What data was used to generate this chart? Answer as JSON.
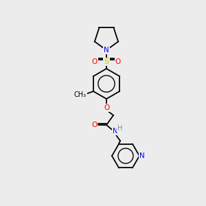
{
  "bg_color": "#ececec",
  "bond_color": "#000000",
  "atom_colors": {
    "N": "#0000ff",
    "O": "#ff0000",
    "S": "#cccc00",
    "H": "#5f9ea0",
    "C": "#000000"
  },
  "font_size": 7.5,
  "figsize": [
    3.0,
    3.0
  ],
  "dpi": 100
}
